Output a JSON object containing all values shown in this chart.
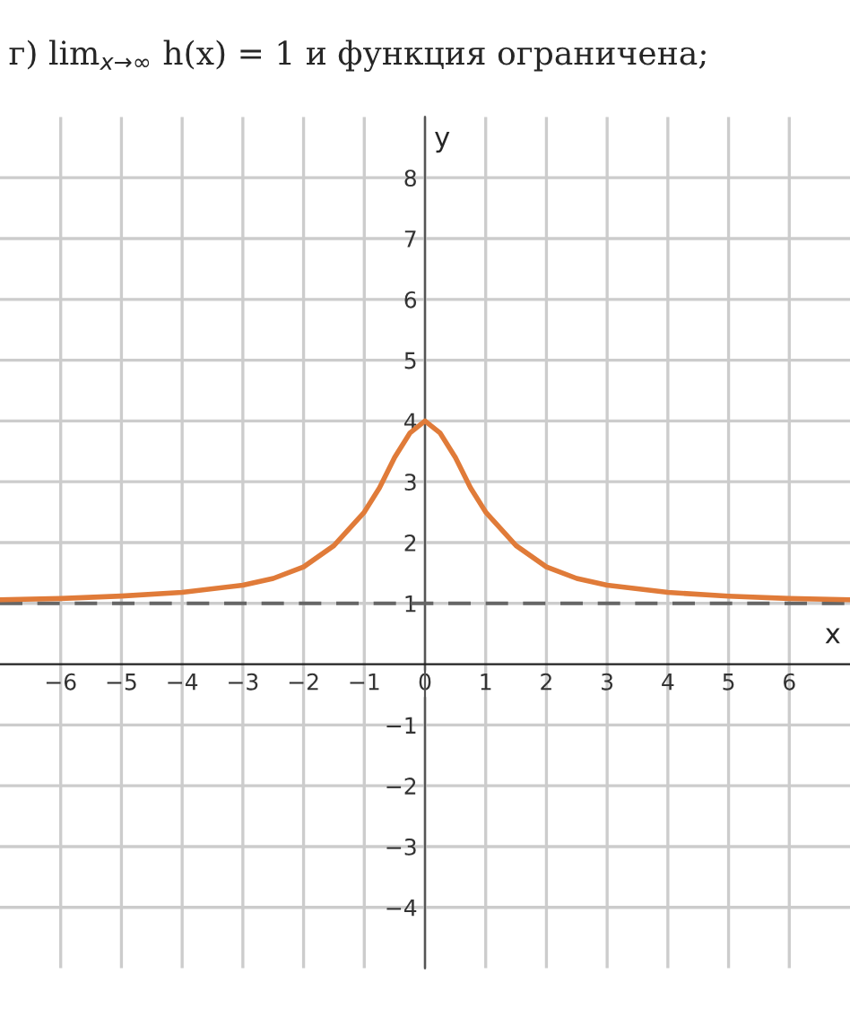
{
  "chart_data": {
    "type": "line",
    "title": "г) lim$_{x→∞}$ h(x) = 1 и функция ограничена;",
    "xlabel": "x",
    "ylabel": "y",
    "x": [
      -7,
      -6,
      -5,
      -4,
      -3,
      -2.5,
      -2,
      -1.5,
      -1,
      -0.75,
      -0.5,
      -0.25,
      0,
      0.25,
      0.5,
      0.75,
      1,
      1.5,
      2,
      2.5,
      3,
      4,
      5,
      6,
      7
    ],
    "series": [
      {
        "color": "#e07b39",
        "values": [
          1.06,
          1.08,
          1.12,
          1.18,
          1.3,
          1.41,
          1.6,
          1.95,
          2.5,
          2.9,
          3.4,
          3.8,
          4,
          3.8,
          3.4,
          2.9,
          2.5,
          1.95,
          1.6,
          1.41,
          1.3,
          1.18,
          1.12,
          1.08,
          1.06
        ]
      }
    ],
    "xlim": [
      -7,
      7
    ],
    "ylim": [
      -5,
      9
    ],
    "xticks": [
      {
        "value": -6,
        "label": "−6"
      },
      {
        "value": -5,
        "label": "−5"
      },
      {
        "value": -4,
        "label": "−4"
      },
      {
        "value": -3,
        "label": "−3"
      },
      {
        "value": -2,
        "label": "−2"
      },
      {
        "value": -1,
        "label": "−1"
      },
      0,
      1,
      2,
      3,
      4,
      5,
      6
    ],
    "yticks": [
      {
        "value": -4,
        "label": "−4"
      },
      {
        "value": -3,
        "label": "−3"
      },
      {
        "value": -2,
        "label": "−2"
      },
      {
        "value": -1,
        "label": "−1"
      },
      1,
      2,
      3,
      4,
      5,
      6,
      7,
      8
    ],
    "ref_lines": [
      {
        "axis": "y",
        "value": 1,
        "color": "#666666",
        "line_style": "dashed"
      }
    ],
    "grid": true,
    "line_style": "solid"
  }
}
